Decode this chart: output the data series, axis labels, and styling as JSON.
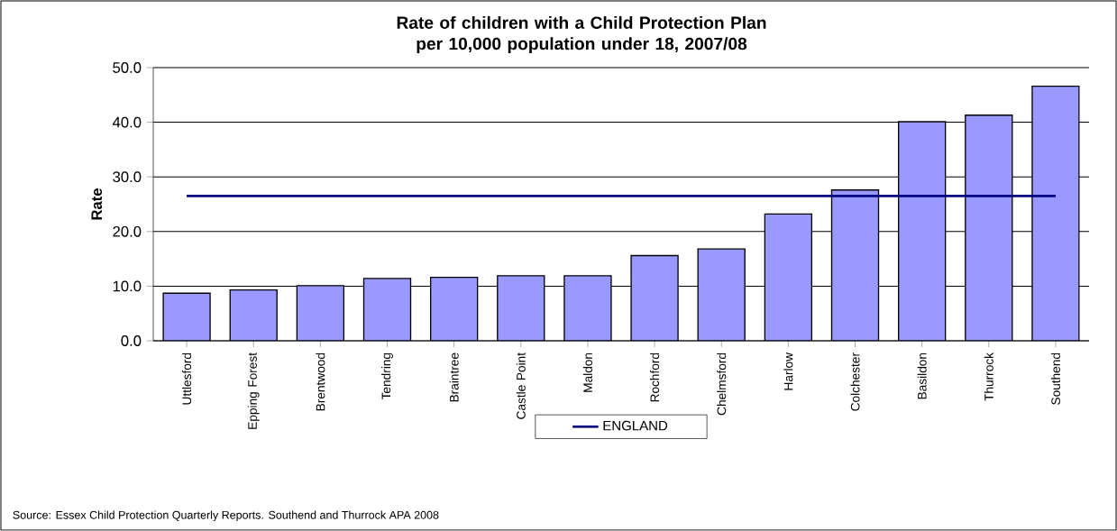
{
  "chart_data": {
    "type": "bar",
    "title": "Rate of children with a Child Protection Plan per 10,000 population under 18, 2007/08",
    "ylabel": "Rate",
    "categories": [
      "Uttlesford",
      "Epping Forest",
      "Brentwood",
      "Tendring",
      "Braintree",
      "Castle Point",
      "Maldon",
      "Rochford",
      "Chelmsford",
      "Harlow",
      "Colchester",
      "Basildon",
      "Thurrock",
      "Southend"
    ],
    "series": [
      {
        "color": "#9999ff",
        "values": [
          8.7,
          9.3,
          10.1,
          11.4,
          11.6,
          11.9,
          11.9,
          15.6,
          16.8,
          23.2,
          27.6,
          40.1,
          41.3,
          46.6
        ]
      },
      {
        "type": "line",
        "name": "ENGLAND",
        "color": "#000080",
        "values": [
          26.5,
          26.5,
          26.5,
          26.5,
          26.5,
          26.5,
          26.5,
          26.5,
          26.5,
          26.5,
          26.5,
          26.5,
          26.5,
          26.5
        ]
      }
    ],
    "ylim": [
      0,
      50
    ],
    "yticks": [
      {
        "value": 0,
        "label": "0.0"
      },
      {
        "value": 10,
        "label": "10.0"
      },
      {
        "value": 20,
        "label": "20.0"
      },
      {
        "value": 30,
        "label": "30.0"
      },
      {
        "value": 40,
        "label": "40.0"
      },
      {
        "value": 50,
        "label": "50.0"
      }
    ],
    "grid": "y",
    "legend": "bottom",
    "annotations": [
      "Source: Essex Child Protection Quarterly Reports. Southend and Thurrock APA 2008"
    ]
  }
}
